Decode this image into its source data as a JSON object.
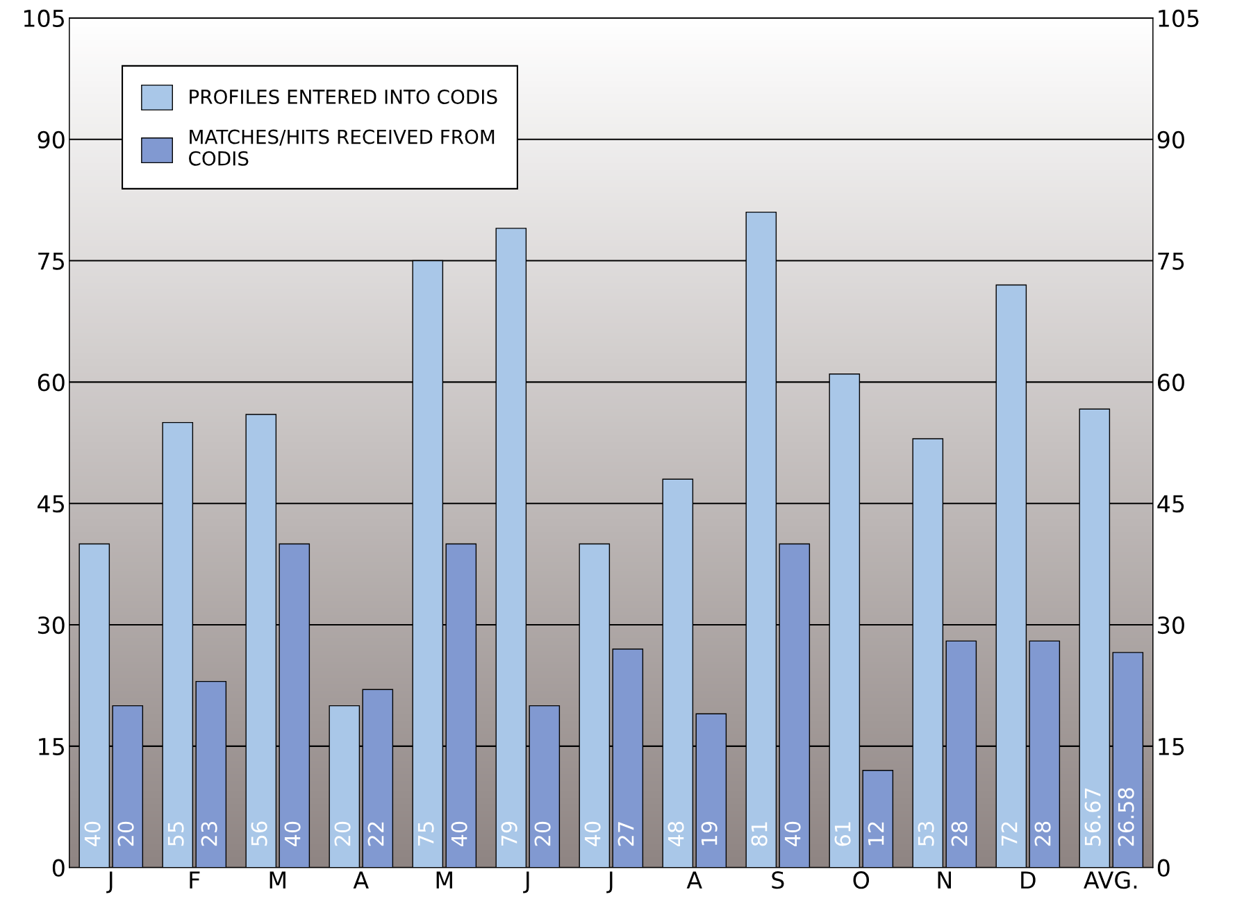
{
  "chart_data": {
    "type": "bar",
    "categories": [
      "J",
      "F",
      "M",
      "A",
      "M",
      "J",
      "J",
      "A",
      "S",
      "O",
      "N",
      "D",
      "AVG."
    ],
    "series": [
      {
        "name": "PROFILES ENTERED INTO CODIS",
        "color": "#a9c7e8",
        "values": [
          40,
          55,
          56,
          20,
          75,
          79,
          40,
          48,
          81,
          61,
          53,
          72,
          56.67
        ]
      },
      {
        "name": "MATCHES/HITS RECEIVED FROM\nCODIS",
        "color": "#8199d1",
        "values": [
          20,
          23,
          40,
          22,
          40,
          20,
          27,
          19,
          40,
          12,
          28,
          28,
          26.58
        ]
      }
    ],
    "ylim": [
      0,
      105
    ],
    "yticks": [
      0,
      15,
      30,
      45,
      60,
      75,
      90,
      105
    ],
    "y2lim": [
      0,
      105
    ],
    "y2ticks": [
      0,
      15,
      30,
      45,
      60,
      75,
      90,
      105
    ],
    "grid": "y",
    "legend": "top left",
    "data_labels": true
  }
}
